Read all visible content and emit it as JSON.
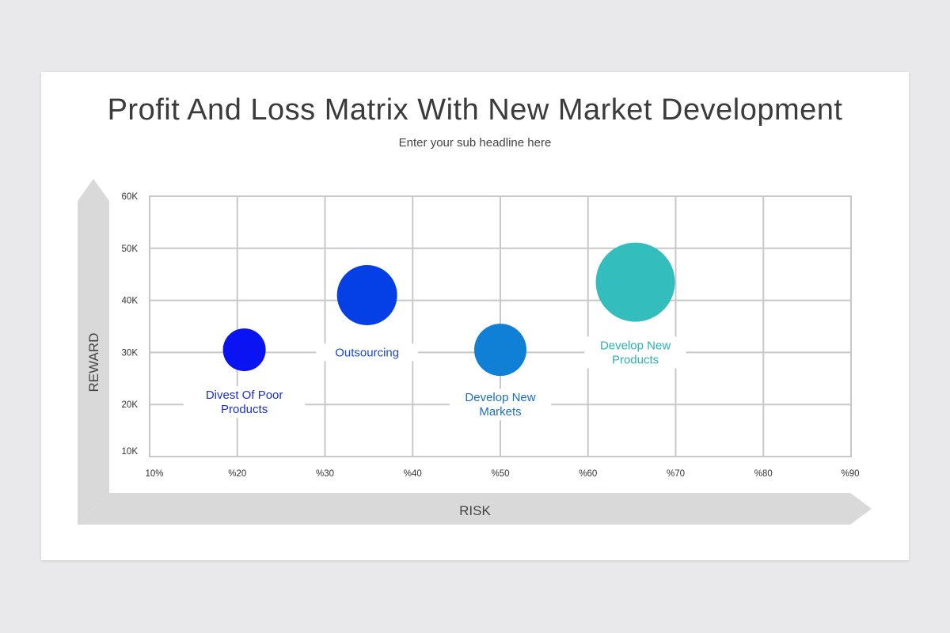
{
  "slide": {
    "title": "Profit And Loss Matrix With New Market Development",
    "subtitle": "Enter your sub headline here"
  },
  "chart_data": {
    "type": "scatter",
    "xlabel": "RISK",
    "ylabel": "REWARD",
    "x_tick_labels": [
      "10%",
      "%20",
      "%30",
      "%40",
      "%50",
      "%60",
      "%70",
      "%80",
      "%90"
    ],
    "y_tick_labels": [
      "10K",
      "20K",
      "30K",
      "40K",
      "50K",
      "60K"
    ],
    "xlim": [
      10,
      90
    ],
    "ylim": [
      10000,
      60000
    ],
    "grid": true,
    "points": [
      {
        "label": "Divest Of Poor Products",
        "label_lines": [
          "Divest Of Poor",
          "Products"
        ],
        "x": 20.8,
        "y": 30500,
        "size": 27,
        "color": "#0a14f2",
        "label_color": "#1a2fc9",
        "label_y": 20500
      },
      {
        "label": "Outsourcing",
        "label_lines": [
          "Outsourcing"
        ],
        "x": 34.8,
        "y": 41000,
        "size": 38,
        "color": "#0540e6",
        "label_color": "#1a47c9",
        "label_y": 30000
      },
      {
        "label": "Develop New Markets",
        "label_lines": [
          "Develop New",
          "Markets"
        ],
        "x": 50.0,
        "y": 30500,
        "size": 33,
        "color": "#1080d6",
        "label_color": "#1a6fc4",
        "label_y": 20000
      },
      {
        "label": "Develop New Products",
        "label_lines": [
          "Develop New",
          "Products"
        ],
        "x": 65.4,
        "y": 43500,
        "size": 50,
        "color": "#33bdbd",
        "label_color": "#2ab3b3",
        "label_y": 30000
      }
    ]
  }
}
